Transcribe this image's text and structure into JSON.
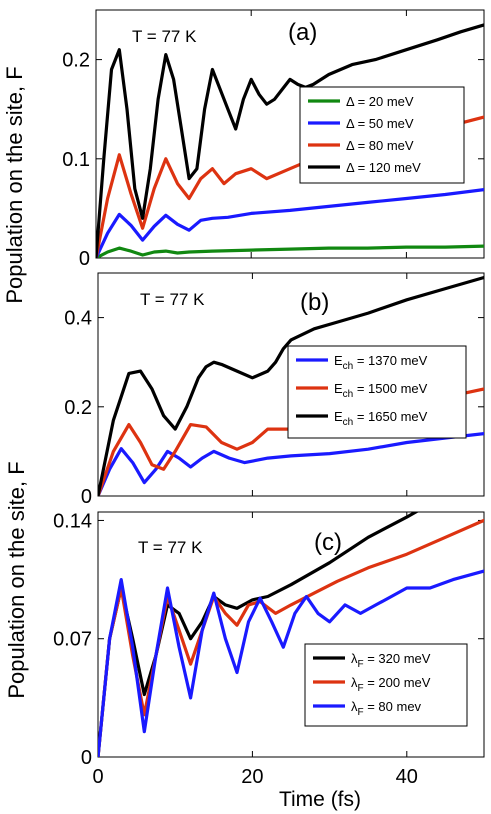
{
  "chart_data": [
    {
      "type": "line",
      "panel_label": "(a)",
      "annotation": "T = 77 K",
      "ylabel": "Population on the site, F",
      "xlim": [
        0,
        50
      ],
      "ylim": [
        0,
        0.25
      ],
      "yticks": [
        0,
        0.1,
        0.2
      ],
      "ytick_labels": [
        "0",
        "0.1",
        "0.2"
      ],
      "legend_position": "right",
      "legend": [
        {
          "label": "Δ = 20 meV",
          "color": "#118811"
        },
        {
          "label": "Δ = 50 meV",
          "color": "#1a1aff"
        },
        {
          "label": "Δ = 80 meV",
          "color": "#dd3311"
        },
        {
          "label": "Δ = 120 meV",
          "color": "#000000"
        }
      ],
      "series": [
        {
          "color": "#118811",
          "x": [
            0,
            1.5,
            3,
            4.5,
            6,
            7.5,
            9,
            10.5,
            12,
            15,
            20,
            25,
            30,
            35,
            40,
            45,
            50
          ],
          "y": [
            0,
            0.006,
            0.01,
            0.007,
            0.003,
            0.006,
            0.007,
            0.005,
            0.006,
            0.007,
            0.008,
            0.009,
            0.01,
            0.01,
            0.011,
            0.011,
            0.012
          ]
        },
        {
          "color": "#1a1aff",
          "x": [
            0,
            1.5,
            3,
            4.5,
            6,
            7.5,
            9,
            10.5,
            12,
            13.5,
            15,
            17,
            20,
            25,
            30,
            35,
            40,
            45,
            50
          ],
          "y": [
            0,
            0.025,
            0.044,
            0.033,
            0.018,
            0.032,
            0.043,
            0.034,
            0.028,
            0.038,
            0.04,
            0.041,
            0.045,
            0.048,
            0.052,
            0.056,
            0.06,
            0.064,
            0.069
          ]
        },
        {
          "color": "#dd3311",
          "x": [
            0,
            1.5,
            3,
            4.5,
            6,
            7.5,
            9,
            10.5,
            12,
            13.5,
            15,
            16.5,
            18,
            20,
            22,
            25,
            28,
            31,
            35,
            40,
            45,
            50
          ],
          "y": [
            0,
            0.06,
            0.104,
            0.065,
            0.03,
            0.07,
            0.1,
            0.075,
            0.06,
            0.08,
            0.09,
            0.075,
            0.085,
            0.09,
            0.08,
            0.09,
            0.1,
            0.105,
            0.115,
            0.122,
            0.132,
            0.142
          ]
        },
        {
          "color": "#000000",
          "x": [
            0,
            1,
            2,
            3,
            4,
            5,
            6,
            7,
            8,
            9,
            10,
            11,
            12,
            13,
            14,
            15,
            16,
            17,
            18,
            19,
            20,
            21,
            22,
            23,
            24,
            25,
            26,
            27,
            28,
            30,
            33,
            36,
            40,
            44,
            47,
            50
          ],
          "y": [
            0,
            0.1,
            0.19,
            0.21,
            0.15,
            0.07,
            0.04,
            0.09,
            0.16,
            0.205,
            0.18,
            0.13,
            0.08,
            0.09,
            0.15,
            0.19,
            0.17,
            0.15,
            0.13,
            0.16,
            0.18,
            0.165,
            0.155,
            0.16,
            0.17,
            0.18,
            0.175,
            0.172,
            0.175,
            0.185,
            0.195,
            0.2,
            0.21,
            0.22,
            0.228,
            0.235
          ]
        }
      ]
    },
    {
      "type": "line",
      "panel_label": "(b)",
      "annotation": "T = 77 K",
      "xlim": [
        0,
        50
      ],
      "ylim": [
        0,
        0.5
      ],
      "yticks": [
        0,
        0.2,
        0.4
      ],
      "ytick_labels": [
        "0",
        "0.2",
        "0.4"
      ],
      "legend_position": "right",
      "legend": [
        {
          "label": "E",
          "sub": "ch",
          "rest": " = 1370 meV",
          "color": "#1a1aff"
        },
        {
          "label": "E",
          "sub": "ch",
          "rest": " = 1500 meV",
          "color": "#dd3311"
        },
        {
          "label": "E",
          "sub": "ch",
          "rest": " = 1650 meV",
          "color": "#000000"
        }
      ],
      "series": [
        {
          "color": "#1a1aff",
          "x": [
            0,
            1.5,
            3,
            4.5,
            6,
            7.5,
            9,
            10.5,
            12,
            13.5,
            15,
            17,
            19,
            22,
            25,
            30,
            35,
            40,
            45,
            50
          ],
          "y": [
            0,
            0.06,
            0.106,
            0.075,
            0.03,
            0.06,
            0.1,
            0.085,
            0.065,
            0.085,
            0.1,
            0.085,
            0.075,
            0.085,
            0.09,
            0.095,
            0.105,
            0.12,
            0.13,
            0.14
          ]
        },
        {
          "color": "#dd3311",
          "x": [
            0,
            2,
            4,
            5.5,
            7,
            8.5,
            10,
            12,
            14,
            16,
            18,
            20,
            22,
            25,
            28,
            31,
            34,
            37,
            40,
            43,
            46,
            50
          ],
          "y": [
            0,
            0.1,
            0.16,
            0.12,
            0.07,
            0.06,
            0.1,
            0.16,
            0.155,
            0.12,
            0.105,
            0.12,
            0.15,
            0.15,
            0.155,
            0.175,
            0.18,
            0.19,
            0.2,
            0.21,
            0.225,
            0.24
          ]
        },
        {
          "color": "#000000",
          "x": [
            0,
            2,
            4,
            5.5,
            7,
            8.5,
            10,
            11.5,
            13,
            14,
            15,
            16,
            18,
            20,
            22,
            23,
            24,
            25,
            28,
            31,
            35,
            40,
            45,
            50
          ],
          "y": [
            0,
            0.17,
            0.275,
            0.28,
            0.24,
            0.18,
            0.15,
            0.2,
            0.265,
            0.29,
            0.3,
            0.295,
            0.28,
            0.265,
            0.28,
            0.3,
            0.33,
            0.35,
            0.375,
            0.39,
            0.41,
            0.44,
            0.465,
            0.49
          ]
        }
      ]
    },
    {
      "type": "line",
      "panel_label": "(c)",
      "annotation": "T = 77 K",
      "ylabel": "Population on the site, F",
      "xlabel": "Time (fs)",
      "xlim": [
        0,
        50
      ],
      "ylim": [
        0,
        0.145
      ],
      "xticks": [
        0,
        20,
        40
      ],
      "xtick_labels": [
        "0",
        "20",
        "40"
      ],
      "yticks": [
        0,
        0.07,
        0.14
      ],
      "ytick_labels": [
        "0",
        "0.07",
        "0.14"
      ],
      "legend_position": "bottom-right",
      "legend": [
        {
          "label": "λ",
          "sub": "F",
          "rest": " = 320 meV",
          "color": "#000000"
        },
        {
          "label": "λ",
          "sub": "F",
          "rest": " = 200 meV",
          "color": "#dd3311"
        },
        {
          "label": "λ",
          "sub": "F",
          "rest": " = 80 mev",
          "color": "#1a1aff"
        }
      ],
      "series": [
        {
          "color": "#000000",
          "x": [
            0,
            1.5,
            3,
            4.5,
            6,
            7.5,
            9,
            10.5,
            12,
            13.5,
            15,
            16.5,
            18,
            20,
            22,
            25,
            30,
            35,
            40,
            45
          ],
          "y": [
            0,
            0.07,
            0.1,
            0.07,
            0.037,
            0.06,
            0.09,
            0.085,
            0.07,
            0.08,
            0.095,
            0.09,
            0.088,
            0.093,
            0.095,
            0.102,
            0.115,
            0.13,
            0.142,
            0.155
          ]
        },
        {
          "color": "#dd3311",
          "x": [
            0,
            1.5,
            3,
            4.5,
            6,
            7.5,
            9,
            10.5,
            12,
            13.5,
            15,
            16.5,
            18,
            19.5,
            21,
            23,
            25,
            28,
            31,
            35,
            40,
            45,
            50
          ],
          "y": [
            0,
            0.07,
            0.1,
            0.06,
            0.025,
            0.06,
            0.095,
            0.075,
            0.055,
            0.075,
            0.095,
            0.085,
            0.078,
            0.09,
            0.092,
            0.085,
            0.09,
            0.097,
            0.104,
            0.112,
            0.12,
            0.13,
            0.14
          ]
        },
        {
          "color": "#1a1aff",
          "x": [
            0,
            1.5,
            3,
            4.5,
            6,
            7.5,
            9,
            10.5,
            12,
            13.5,
            15,
            16.5,
            18,
            19.5,
            21,
            22.5,
            24,
            25.5,
            27,
            28.5,
            30,
            32,
            34,
            36,
            38,
            40,
            43,
            46,
            50
          ],
          "y": [
            0,
            0.07,
            0.105,
            0.065,
            0.015,
            0.06,
            0.1,
            0.065,
            0.035,
            0.075,
            0.097,
            0.07,
            0.05,
            0.08,
            0.094,
            0.08,
            0.065,
            0.085,
            0.095,
            0.085,
            0.08,
            0.09,
            0.085,
            0.09,
            0.095,
            0.1,
            0.1,
            0.105,
            0.11
          ]
        }
      ]
    }
  ]
}
